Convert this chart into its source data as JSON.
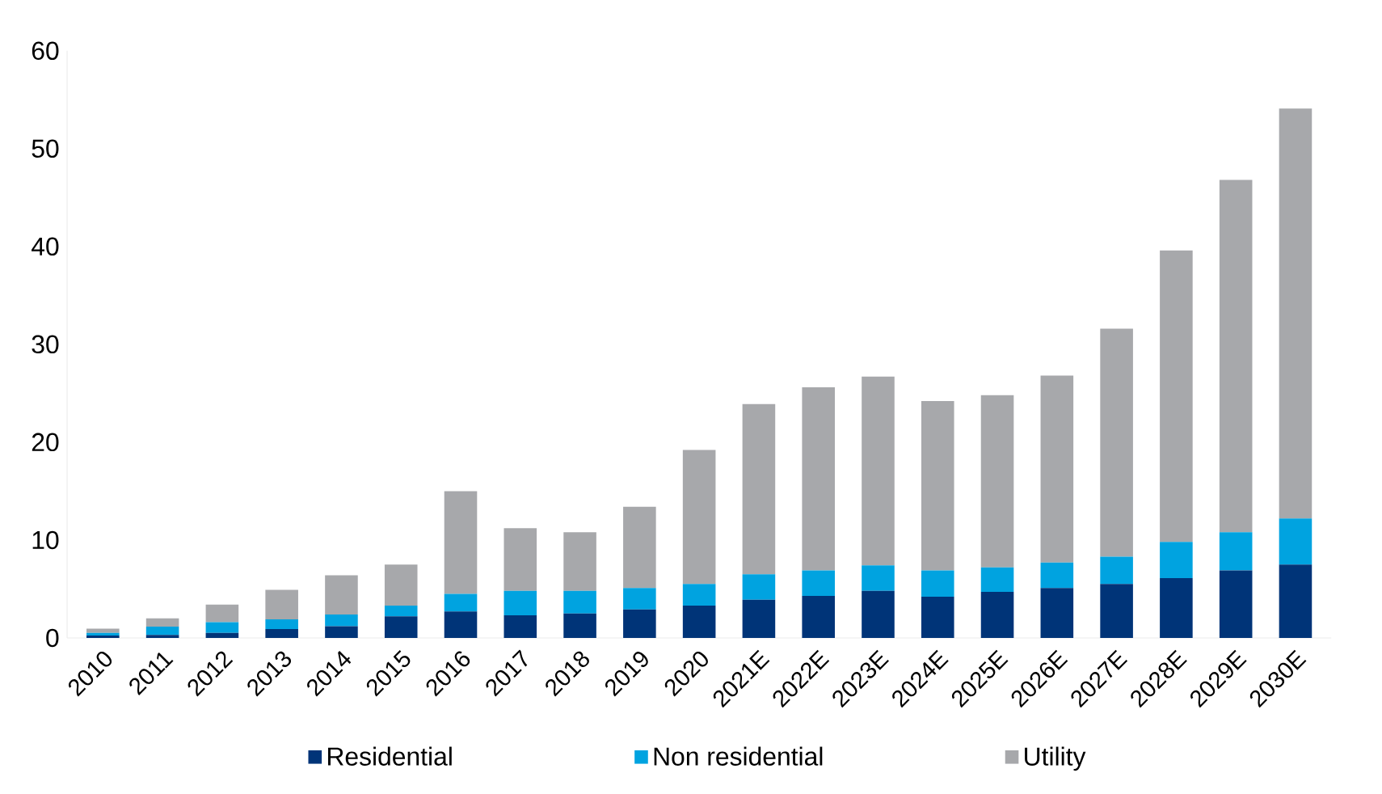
{
  "chart_data": {
    "type": "bar",
    "stacked": true,
    "grid": false,
    "legend": "bottom",
    "categories": [
      "2010",
      "2011",
      "2012",
      "2013",
      "2014",
      "2015",
      "2016",
      "2017",
      "2018",
      "2019",
      "2020",
      "2021E",
      "2022E",
      "2023E",
      "2024E",
      "2025E",
      "2026E",
      "2027E",
      "2028E",
      "2029E",
      "2030E"
    ],
    "ylim": [
      0,
      60
    ],
    "yticks": [
      0,
      10,
      20,
      30,
      40,
      50,
      60
    ],
    "series": [
      {
        "name": "Residential",
        "color": "#003478",
        "values": [
          0.25,
          0.3,
          0.5,
          0.9,
          1.2,
          2.2,
          2.7,
          2.3,
          2.5,
          2.9,
          3.3,
          3.9,
          4.3,
          4.8,
          4.2,
          4.7,
          5.1,
          5.5,
          6.1,
          6.9,
          7.5
        ]
      },
      {
        "name": "Non residential",
        "color": "#00a3e0",
        "values": [
          0.25,
          0.85,
          1.1,
          1.0,
          1.2,
          1.1,
          1.8,
          2.5,
          2.3,
          2.2,
          2.2,
          2.6,
          2.6,
          2.6,
          2.7,
          2.5,
          2.6,
          2.8,
          3.7,
          3.9,
          4.7
        ]
      },
      {
        "name": "Utility",
        "color": "#a7a8ab",
        "values": [
          0.45,
          0.85,
          1.8,
          3.0,
          4.0,
          4.2,
          10.5,
          6.4,
          6.0,
          8.3,
          13.7,
          17.4,
          18.7,
          19.3,
          17.3,
          17.6,
          19.1,
          23.3,
          29.8,
          36.0,
          41.9
        ]
      }
    ]
  }
}
